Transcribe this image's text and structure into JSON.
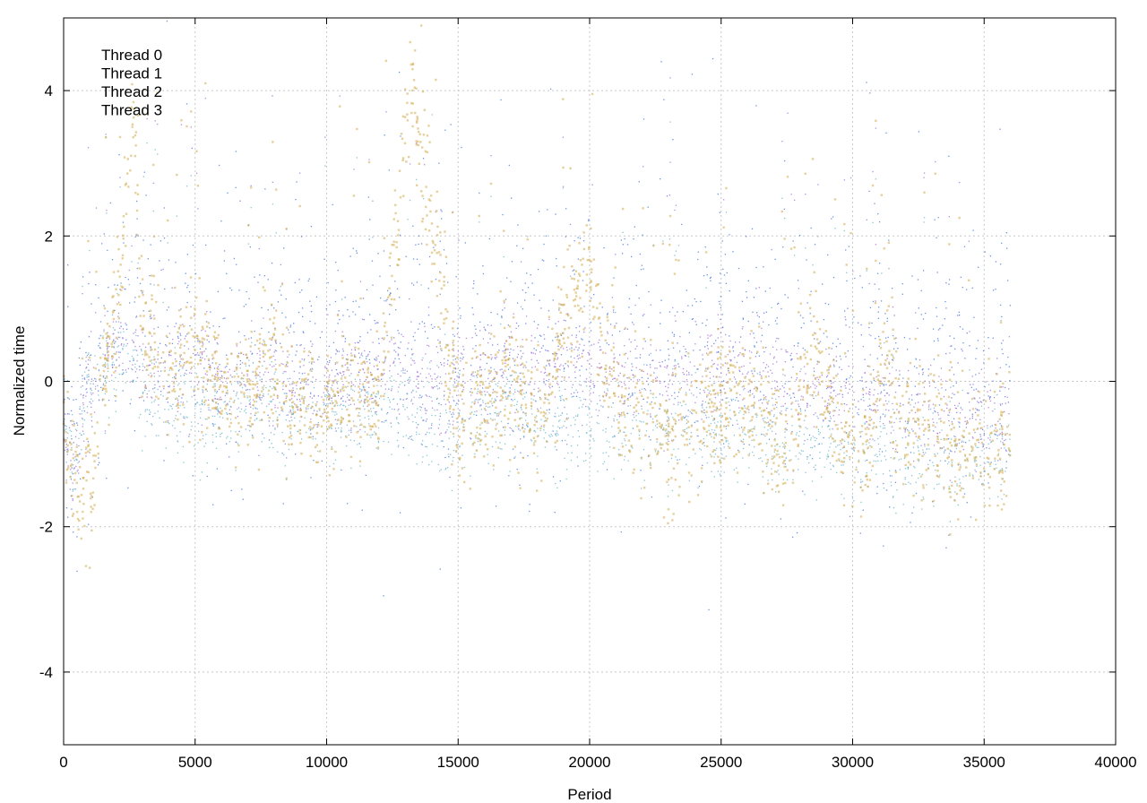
{
  "chart_data": {
    "type": "scatter",
    "title": "",
    "xlabel": "Period",
    "ylabel": "Normalized time",
    "xlim": [
      0,
      40000
    ],
    "ylim": [
      -5,
      5
    ],
    "xticks": [
      0,
      5000,
      10000,
      15000,
      20000,
      25000,
      30000,
      35000,
      40000
    ],
    "xtick_labels": [
      "0",
      "5000",
      "10000",
      "15000",
      "20000",
      "25000",
      "30000",
      "35000",
      "40000"
    ],
    "yticks": [
      4,
      2,
      0,
      -2,
      -4
    ],
    "ytick_labels": [
      "4",
      "2",
      "0",
      "-2",
      "-4"
    ],
    "grid": true,
    "legend_position": "top-left",
    "x_max_data": 36000,
    "series": [
      {
        "name": "Thread 0",
        "color": "#9a66d6",
        "marker": "dot",
        "trend": [
          [
            0,
            -0.8
          ],
          [
            400,
            -1.2
          ],
          [
            800,
            -0.3
          ],
          [
            2000,
            0.5
          ],
          [
            3000,
            0.2
          ],
          [
            5000,
            0.2
          ],
          [
            7000,
            0.0
          ],
          [
            9000,
            -0.1
          ],
          [
            11000,
            0.0
          ],
          [
            13000,
            0.1
          ],
          [
            15000,
            -0.1
          ],
          [
            17000,
            0.2
          ],
          [
            19000,
            0.1
          ],
          [
            21000,
            0.1
          ],
          [
            23000,
            0.0
          ],
          [
            25000,
            0.1
          ],
          [
            27000,
            0.0
          ],
          [
            29000,
            -0.2
          ],
          [
            31000,
            -0.3
          ],
          [
            33000,
            -0.4
          ],
          [
            35000,
            -0.5
          ],
          [
            36000,
            -0.5
          ]
        ]
      },
      {
        "name": "Thread 1",
        "color": "#3a6fd8",
        "marker": "dot",
        "trend": [
          [
            0,
            -0.6
          ],
          [
            400,
            -1.0
          ],
          [
            800,
            0.0
          ],
          [
            2000,
            0.9
          ],
          [
            3000,
            0.6
          ],
          [
            5000,
            0.4
          ],
          [
            7000,
            0.3
          ],
          [
            9000,
            0.3
          ],
          [
            11000,
            0.2
          ],
          [
            13000,
            0.6
          ],
          [
            15000,
            0.4
          ],
          [
            17000,
            0.5
          ],
          [
            19000,
            0.5
          ],
          [
            21000,
            0.5
          ],
          [
            23000,
            0.4
          ],
          [
            25000,
            0.5
          ],
          [
            27000,
            0.3
          ],
          [
            29000,
            0.2
          ],
          [
            31000,
            0.1
          ],
          [
            33000,
            0.0
          ],
          [
            35000,
            -0.1
          ],
          [
            36000,
            -0.1
          ]
        ]
      },
      {
        "name": "Thread 2",
        "color": "#5fb3c8",
        "marker": "dot",
        "trend": [
          [
            0,
            -0.5
          ],
          [
            400,
            -1.1
          ],
          [
            800,
            -0.2
          ],
          [
            2000,
            0.4
          ],
          [
            3000,
            -0.1
          ],
          [
            5000,
            -0.5
          ],
          [
            7000,
            -0.3
          ],
          [
            9000,
            -0.4
          ],
          [
            11000,
            -0.5
          ],
          [
            13000,
            -0.4
          ],
          [
            15000,
            -0.6
          ],
          [
            17000,
            -0.4
          ],
          [
            19000,
            -0.6
          ],
          [
            21000,
            -0.7
          ],
          [
            23000,
            -0.6
          ],
          [
            25000,
            -0.7
          ],
          [
            27000,
            -0.8
          ],
          [
            29000,
            -0.9
          ],
          [
            31000,
            -1.0
          ],
          [
            33000,
            -1.0
          ],
          [
            35000,
            -1.0
          ],
          [
            36000,
            -1.0
          ]
        ]
      },
      {
        "name": "Thread 3",
        "color": "#d2a94a",
        "marker": "small-square",
        "trend": [
          [
            0,
            -0.6
          ],
          [
            300,
            -1.2
          ],
          [
            700,
            -1.6
          ],
          [
            1100,
            -1.5
          ],
          [
            1500,
            0.0
          ],
          [
            2200,
            1.2
          ],
          [
            2600,
            3.8
          ],
          [
            3000,
            0.8
          ],
          [
            4000,
            0.2
          ],
          [
            5000,
            0.4
          ],
          [
            6000,
            0.0
          ],
          [
            7000,
            -0.1
          ],
          [
            8000,
            0.3
          ],
          [
            9000,
            -0.5
          ],
          [
            10000,
            -0.4
          ],
          [
            11000,
            -0.2
          ],
          [
            12000,
            -0.3
          ],
          [
            12800,
            2.5
          ],
          [
            13200,
            4.2
          ],
          [
            13800,
            2.6
          ],
          [
            14400,
            1.2
          ],
          [
            15000,
            -0.7
          ],
          [
            16000,
            -0.3
          ],
          [
            17000,
            0.0
          ],
          [
            18000,
            -0.6
          ],
          [
            19000,
            0.6
          ],
          [
            20000,
            1.5
          ],
          [
            20600,
            0.2
          ],
          [
            21500,
            -0.6
          ],
          [
            22500,
            -0.5
          ],
          [
            23500,
            -0.9
          ],
          [
            24500,
            -0.3
          ],
          [
            25500,
            -0.4
          ],
          [
            26500,
            -0.5
          ],
          [
            27500,
            -1.1
          ],
          [
            28500,
            0.5
          ],
          [
            29500,
            -0.8
          ],
          [
            30500,
            -1.0
          ],
          [
            31200,
            0.3
          ],
          [
            32000,
            -0.6
          ],
          [
            33000,
            -0.7
          ],
          [
            34000,
            -1.0
          ],
          [
            35000,
            -0.9
          ],
          [
            36000,
            -1.0
          ]
        ]
      }
    ]
  }
}
